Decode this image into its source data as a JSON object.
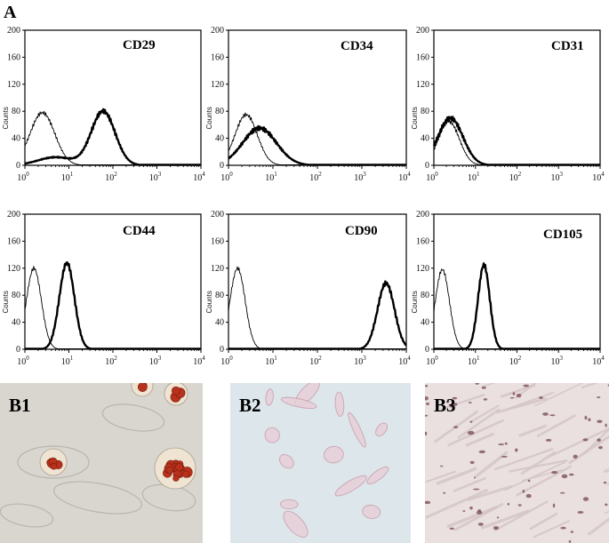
{
  "panel_label_A": "A",
  "y_axis_label": "Counts",
  "chart_data": [
    {
      "type": "line",
      "marker": "CD29",
      "xscale": "log",
      "xlim": [
        1,
        10000
      ],
      "ylim": [
        0,
        200
      ],
      "xticks": [
        "10^0",
        "10^1",
        "10^2",
        "10^3",
        "10^4"
      ],
      "yticks": [
        "0",
        "40",
        "80",
        "120",
        "160",
        "200"
      ],
      "series": [
        {
          "style": "thin",
          "peaks": [
            {
              "x": 2.5,
              "y": 78,
              "w": 0.28
            }
          ]
        },
        {
          "style": "thick",
          "peaks": [
            {
              "x": 60,
              "y": 80,
              "w": 0.27
            },
            {
              "x": 5,
              "y": 12,
              "w": 0.4
            }
          ]
        }
      ]
    },
    {
      "type": "line",
      "marker": "CD34",
      "xscale": "log",
      "xlim": [
        1,
        10000
      ],
      "ylim": [
        0,
        200
      ],
      "xticks": [
        "10^0",
        "10^1",
        "10^2",
        "10^3",
        "10^4"
      ],
      "yticks": [
        "0",
        "40",
        "80",
        "120",
        "160",
        "200"
      ],
      "series": [
        {
          "style": "thin",
          "peaks": [
            {
              "x": 2.5,
              "y": 75,
              "w": 0.25
            }
          ]
        },
        {
          "style": "thick",
          "peaks": [
            {
              "x": 5,
              "y": 55,
              "w": 0.38
            }
          ]
        }
      ]
    },
    {
      "type": "line",
      "marker": "CD31",
      "xscale": "log",
      "xlim": [
        1,
        10000
      ],
      "ylim": [
        0,
        200
      ],
      "xticks": [
        "10^0",
        "10^1",
        "10^2",
        "10^3",
        "10^4"
      ],
      "yticks": [
        "0",
        "40",
        "80",
        "120",
        "160",
        "200"
      ],
      "series": [
        {
          "style": "thin",
          "peaks": [
            {
              "x": 2.3,
              "y": 65,
              "w": 0.25
            }
          ]
        },
        {
          "style": "thick",
          "peaks": [
            {
              "x": 2.5,
              "y": 70,
              "w": 0.3
            }
          ]
        }
      ]
    },
    {
      "type": "line",
      "marker": "CD44",
      "xscale": "log",
      "xlim": [
        1,
        10000
      ],
      "ylim": [
        0,
        200
      ],
      "xticks": [
        "10^0",
        "10^1",
        "10^2",
        "10^3",
        "10^4"
      ],
      "yticks": [
        "0",
        "40",
        "80",
        "120",
        "160",
        "200"
      ],
      "series": [
        {
          "style": "thin",
          "peaks": [
            {
              "x": 1.6,
              "y": 120,
              "w": 0.17
            }
          ]
        },
        {
          "style": "thick",
          "peaks": [
            {
              "x": 9,
              "y": 128,
              "w": 0.17
            }
          ]
        }
      ]
    },
    {
      "type": "line",
      "marker": "CD90",
      "xscale": "log",
      "xlim": [
        1,
        10000
      ],
      "ylim": [
        0,
        200
      ],
      "xticks": [
        "10^0",
        "10^1",
        "10^2",
        "10^3",
        "10^4"
      ],
      "yticks": [
        "0",
        "40",
        "80",
        "120",
        "160",
        "200"
      ],
      "series": [
        {
          "style": "thin",
          "peaks": [
            {
              "x": 1.6,
              "y": 120,
              "w": 0.17
            }
          ]
        },
        {
          "style": "thick",
          "peaks": [
            {
              "x": 3500,
              "y": 98,
              "w": 0.19
            }
          ]
        }
      ]
    },
    {
      "type": "line",
      "marker": "CD105",
      "xscale": "log",
      "xlim": [
        1,
        10000
      ],
      "ylim": [
        0,
        200
      ],
      "xticks": [
        "10^0",
        "10^1",
        "10^2",
        "10^3",
        "10^4"
      ],
      "yticks": [
        "0",
        "40",
        "80",
        "120",
        "160",
        "200"
      ],
      "series": [
        {
          "style": "thin",
          "peaks": [
            {
              "x": 1.6,
              "y": 118,
              "w": 0.17
            }
          ]
        },
        {
          "style": "thick",
          "peaks": [
            {
              "x": 16,
              "y": 125,
              "w": 0.14
            }
          ]
        }
      ]
    }
  ],
  "photos": [
    {
      "label": "B1",
      "stain": "red lipid droplets",
      "background": "#d9d6cf"
    },
    {
      "label": "B2",
      "stain": "pale pink cells",
      "background": "#dde6ea"
    },
    {
      "label": "B3",
      "stain": "dark purple deposits",
      "background": "#e9e0df"
    }
  ]
}
